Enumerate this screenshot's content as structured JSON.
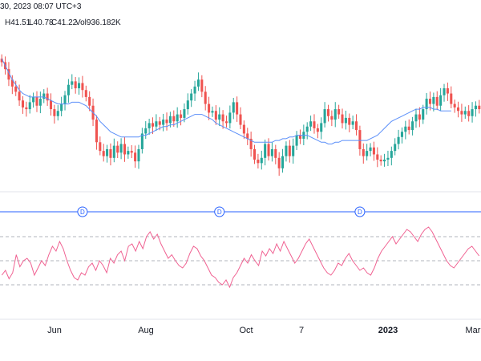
{
  "header": {
    "session_fragment": "30, 2023 08:07 UTC+3",
    "ohlc_high": "H41.51",
    "ohlc_low": "L40.78",
    "ohlc_close": "C41.22",
    "volume": "Vol936.182K"
  },
  "colors": {
    "up": "#26a69a",
    "down": "#ef5350",
    "ma_line": "#5b8ff9",
    "rsi_line": "#f06292",
    "dividend": "#2962ff",
    "grid_dash": "#b2b5be",
    "axis_text": "#131722"
  },
  "chart_data": [
    {
      "type": "candlestick",
      "overlay_line": "moving-average",
      "x_ticks": [
        "Jun",
        "Aug",
        "Oct",
        "7",
        "2023",
        "Mar"
      ],
      "closes": [
        47.6,
        47.2,
        46.6,
        46.2,
        45.9,
        45.4,
        45.0,
        44.9,
        45.3,
        45.6,
        45.1,
        45.5,
        45.8,
        45.4,
        44.9,
        44.5,
        44.8,
        45.2,
        45.7,
        46.3,
        46.5,
        46.1,
        46.4,
        46.0,
        45.6,
        45.1,
        44.3,
        43.0,
        42.5,
        42.2,
        42.6,
        42.1,
        42.8,
        42.4,
        42.9,
        42.3,
        42.5,
        42.4,
        41.9,
        42.6,
        43.5,
        43.8,
        44.1,
        43.9,
        44.2,
        44.0,
        44.3,
        44.1,
        44.5,
        44.2,
        44.6,
        44.4,
        44.9,
        45.4,
        45.8,
        46.2,
        46.6,
        45.9,
        45.2,
        44.7,
        44.8,
        44.3,
        44.6,
        44.2,
        44.1,
        44.7,
        45.3,
        44.6,
        44.0,
        43.5,
        43.2,
        42.6,
        42.0,
        41.8,
        42.1,
        42.9,
        42.2,
        42.6,
        42.1,
        41.5,
        42.2,
        42.8,
        42.2,
        42.8,
        43.4,
        43.2,
        43.6,
        43.9,
        44.2,
        43.8,
        43.6,
        44.1,
        44.9,
        44.5,
        44.3,
        44.9,
        44.6,
        44.1,
        44.4,
        44.0,
        44.2,
        43.7,
        42.6,
        42.2,
        42.5,
        42.7,
        42.3,
        42.0,
        41.9,
        42.0,
        42.1,
        42.5,
        42.9,
        43.3,
        43.6,
        43.9,
        43.7,
        44.2,
        44.6,
        44.3,
        44.9,
        45.5,
        45.2,
        45.6,
        45.1,
        45.7,
        46.1,
        45.8,
        45.2,
        45.0,
        44.8,
        44.6,
        44.8,
        44.5,
        44.9,
        45.1,
        44.9
      ],
      "moving_average": [
        47.8,
        47.4,
        47.0,
        46.6,
        46.3,
        46.0,
        45.8,
        45.7,
        45.6,
        45.6,
        45.6,
        45.6,
        45.6,
        45.5,
        45.4,
        45.3,
        45.2,
        45.2,
        45.2,
        45.2,
        45.3,
        45.3,
        45.3,
        45.2,
        45.1,
        44.9,
        44.7,
        44.5,
        44.2,
        44.0,
        43.8,
        43.6,
        43.5,
        43.4,
        43.3,
        43.3,
        43.3,
        43.3,
        43.3,
        43.3,
        43.4,
        43.4,
        43.5,
        43.6,
        43.7,
        43.8,
        43.9,
        43.9,
        44.0,
        44.0,
        44.1,
        44.2,
        44.3,
        44.4,
        44.5,
        44.6,
        44.6,
        44.6,
        44.5,
        44.4,
        44.3,
        44.1,
        44.0,
        43.9,
        43.8,
        43.7,
        43.6,
        43.5,
        43.4,
        43.3,
        43.2,
        43.1,
        43.0,
        43.0,
        43.0,
        43.0,
        43.0,
        43.0,
        43.1,
        43.1,
        43.2,
        43.2,
        43.3,
        43.3,
        43.4,
        43.4,
        43.4,
        43.4,
        43.3,
        43.2,
        43.1,
        43.0,
        43.0,
        42.9,
        42.9,
        43.0,
        43.0,
        43.1,
        43.1,
        43.1,
        43.1,
        43.1,
        43.1,
        43.1,
        43.1,
        43.2,
        43.3,
        43.4,
        43.6,
        43.8,
        44.0,
        44.2,
        44.3,
        44.4,
        44.5,
        44.6,
        44.7,
        44.8,
        44.9,
        44.9,
        45.0,
        45.0,
        45.0,
        44.9,
        44.9,
        44.8,
        44.8,
        44.8,
        44.8
      ],
      "y_range": [
        40.8,
        48.5
      ]
    },
    {
      "type": "line",
      "indicator": "rsi",
      "reference_levels": [
        70,
        50,
        30
      ],
      "y_range": [
        20,
        80
      ],
      "values": [
        38,
        42,
        35,
        40,
        55,
        45,
        50,
        52,
        48,
        38,
        44,
        50,
        46,
        55,
        62,
        58,
        66,
        60,
        50,
        42,
        36,
        34,
        40,
        38,
        45,
        48,
        42,
        50,
        46,
        40,
        52,
        48,
        55,
        58,
        50,
        62,
        64,
        58,
        66,
        60,
        70,
        74,
        68,
        72,
        64,
        58,
        52,
        55,
        50,
        46,
        44,
        48,
        56,
        62,
        60,
        54,
        50,
        44,
        38,
        36,
        32,
        30,
        34,
        28,
        36,
        40,
        46,
        52,
        48,
        55,
        50,
        46,
        58,
        54,
        60,
        56,
        64,
        58,
        66,
        60,
        54,
        48,
        52,
        58,
        64,
        68,
        62,
        56,
        50,
        44,
        40,
        38,
        42,
        48,
        46,
        52,
        56,
        50,
        46,
        42,
        44,
        40,
        38,
        44,
        52,
        58,
        62,
        66,
        70,
        64,
        68,
        72,
        76,
        74,
        70,
        66,
        72,
        76,
        78,
        74,
        68,
        62,
        56,
        50,
        46,
        44,
        48,
        52,
        56,
        60,
        62,
        58,
        54
      ]
    }
  ],
  "dividend_markers": {
    "label": "D",
    "positions_index": [
      23,
      62,
      102
    ]
  }
}
